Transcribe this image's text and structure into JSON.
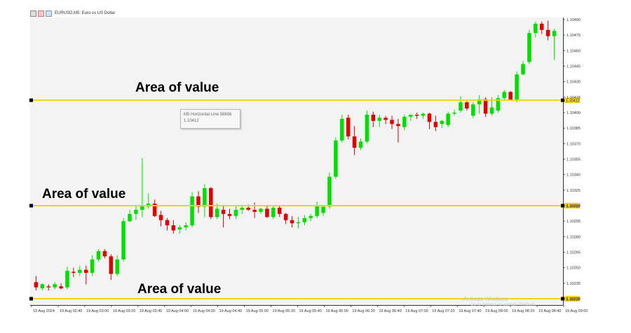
{
  "window": {
    "title": "EURUSD,M5: Euro vs US Dollar",
    "icons": [
      "chart-window-icon",
      "symbol-flag-icon",
      "timeframe-icon"
    ]
  },
  "colors": {
    "background": "#f3f3f3",
    "bull": "#00e000",
    "bear": "#e00000",
    "hline": "#f2d21b",
    "axis_text": "#333333"
  },
  "annotations": [
    {
      "text": "Area of value"
    },
    {
      "text": "Area of value"
    },
    {
      "text": "Area of value"
    }
  ],
  "tooltip": {
    "line1": "M5 Horizontal Line 58806",
    "line2": "1.10412"
  },
  "watermark": {
    "line1": "Activate Windows",
    "line2": "Go to Settings to activate Windows."
  },
  "chart_data": {
    "type": "candlestick",
    "y_axis_labels": [
      "1.10490",
      "1.10475",
      "1.10460",
      "1.10445",
      "1.10430",
      "1.10415",
      "1.10400",
      "1.10385",
      "1.10370",
      "1.10355",
      "1.10340",
      "1.10325",
      "1.10310",
      "1.10295",
      "1.10280",
      "1.10265",
      "1.10250",
      "1.10235",
      "1.10220"
    ],
    "x_axis_labels": [
      "19 Aug 2024",
      "19 Aug 02:40",
      "19 Aug 03:00",
      "19 Aug 03:20",
      "19 Aug 03:40",
      "19 Aug 04:00",
      "19 Aug 04:20",
      "19 Aug 04:40",
      "19 Aug 05:00",
      "19 Aug 05:20",
      "19 Aug 05:40",
      "19 Aug 06:00",
      "19 Aug 06:20",
      "19 Aug 06:40",
      "19 Aug 07:00",
      "19 Aug 07:20",
      "19 Aug 07:40",
      "19 Aug 08:00",
      "19 Aug 08:20",
      "19 Aug 08:40",
      "19 Aug 09:00"
    ],
    "horizontal_lines": [
      {
        "price": 1.10412,
        "label": "1.10412"
      },
      {
        "price": 1.1031,
        "label": "1.10310"
      },
      {
        "price": 1.1022,
        "label": "1.10220"
      }
    ],
    "candles": [
      [
        1.10236,
        1.10242,
        1.10228,
        1.10231
      ],
      [
        1.1023,
        1.10235,
        1.10228,
        1.10234
      ],
      [
        1.10232,
        1.10234,
        1.10228,
        1.10231
      ],
      [
        1.10231,
        1.10236,
        1.10229,
        1.10234
      ],
      [
        1.10232,
        1.10235,
        1.10229,
        1.1023
      ],
      [
        1.10231,
        1.10251,
        1.10229,
        1.10247
      ],
      [
        1.10246,
        1.1025,
        1.10241,
        1.10245
      ],
      [
        1.10245,
        1.10252,
        1.10242,
        1.10248
      ],
      [
        1.10248,
        1.10252,
        1.10234,
        1.10245
      ],
      [
        1.10245,
        1.10262,
        1.10242,
        1.10258
      ],
      [
        1.10258,
        1.10268,
        1.10256,
        1.10266
      ],
      [
        1.10266,
        1.10268,
        1.10259,
        1.10261
      ],
      [
        1.10261,
        1.10263,
        1.10238,
        1.10244
      ],
      [
        1.10244,
        1.10262,
        1.10242,
        1.10258
      ],
      [
        1.10258,
        1.10298,
        1.10256,
        1.10295
      ],
      [
        1.10295,
        1.10306,
        1.10294,
        1.10302
      ],
      [
        1.10302,
        1.1031,
        1.10296,
        1.10306
      ],
      [
        1.10306,
        1.10356,
        1.10299,
        1.1031
      ],
      [
        1.10309,
        1.10322,
        1.10307,
        1.10312
      ],
      [
        1.10312,
        1.10316,
        1.10299,
        1.103
      ],
      [
        1.10301,
        1.10305,
        1.1029,
        1.10296
      ],
      [
        1.10296,
        1.10298,
        1.10286,
        1.10291
      ],
      [
        1.10291,
        1.10296,
        1.10283,
        1.10286
      ],
      [
        1.10287,
        1.10291,
        1.10283,
        1.10289
      ],
      [
        1.10289,
        1.10294,
        1.10286,
        1.10291
      ],
      [
        1.10291,
        1.10323,
        1.10289,
        1.10319
      ],
      [
        1.10319,
        1.10324,
        1.10303,
        1.10309
      ],
      [
        1.10309,
        1.10331,
        1.10299,
        1.10327
      ],
      [
        1.10327,
        1.10328,
        1.10297,
        1.10299
      ],
      [
        1.10299,
        1.10312,
        1.10297,
        1.10307
      ],
      [
        1.10306,
        1.1031,
        1.10289,
        1.10302
      ],
      [
        1.10302,
        1.10307,
        1.10297,
        1.103
      ],
      [
        1.103,
        1.1031,
        1.10297,
        1.10306
      ],
      [
        1.10306,
        1.1031,
        1.10302,
        1.10308
      ],
      [
        1.10308,
        1.10311,
        1.10305,
        1.10306
      ],
      [
        1.10306,
        1.10313,
        1.10298,
        1.10304
      ],
      [
        1.10304,
        1.10308,
        1.10302,
        1.10307
      ],
      [
        1.10307,
        1.1031,
        1.10298,
        1.10299
      ],
      [
        1.10299,
        1.1031,
        1.10297,
        1.10308
      ],
      [
        1.10308,
        1.1031,
        1.10299,
        1.10302
      ],
      [
        1.10302,
        1.10303,
        1.10292,
        1.10296
      ],
      [
        1.10296,
        1.103,
        1.10289,
        1.10293
      ],
      [
        1.10293,
        1.10299,
        1.10288,
        1.10294
      ],
      [
        1.10294,
        1.10301,
        1.10291,
        1.10298
      ],
      [
        1.10298,
        1.10302,
        1.10295,
        1.103
      ],
      [
        1.103,
        1.10314,
        1.10298,
        1.1031
      ],
      [
        1.10303,
        1.1031,
        1.103,
        1.10309
      ],
      [
        1.10309,
        1.10342,
        1.10307,
        1.10338
      ],
      [
        1.10338,
        1.10376,
        1.10336,
        1.10373
      ],
      [
        1.10373,
        1.10398,
        1.10371,
        1.10394
      ],
      [
        1.10395,
        1.10398,
        1.10374,
        1.10377
      ],
      [
        1.10377,
        1.10387,
        1.10359,
        1.10366
      ],
      [
        1.10366,
        1.10375,
        1.10364,
        1.10372
      ],
      [
        1.10372,
        1.10402,
        1.1037,
        1.10398
      ],
      [
        1.10398,
        1.10401,
        1.10386,
        1.10392
      ],
      [
        1.10392,
        1.10398,
        1.10386,
        1.10395
      ],
      [
        1.10395,
        1.10397,
        1.10389,
        1.10393
      ],
      [
        1.10393,
        1.10397,
        1.10384,
        1.10389
      ],
      [
        1.10389,
        1.10394,
        1.10371,
        1.10387
      ],
      [
        1.10386,
        1.10398,
        1.10383,
        1.10396
      ],
      [
        1.10396,
        1.10398,
        1.10392,
        1.10398
      ],
      [
        1.10398,
        1.104,
        1.10394,
        1.10397
      ],
      [
        1.10397,
        1.104,
        1.10394,
        1.10399
      ],
      [
        1.10399,
        1.104,
        1.10384,
        1.10391
      ],
      [
        1.10391,
        1.10397,
        1.10382,
        1.10386
      ],
      [
        1.10389,
        1.10393,
        1.10385,
        1.10392
      ],
      [
        1.10388,
        1.10401,
        1.10386,
        1.10399
      ],
      [
        1.10399,
        1.10403,
        1.10397,
        1.104
      ],
      [
        1.10402,
        1.10416,
        1.104,
        1.1041
      ],
      [
        1.1041,
        1.10411,
        1.10402,
        1.10404
      ],
      [
        1.10397,
        1.1041,
        1.10395,
        1.10408
      ],
      [
        1.10408,
        1.10417,
        1.10399,
        1.10413
      ],
      [
        1.10413,
        1.10415,
        1.10396,
        1.10399
      ],
      [
        1.10399,
        1.10415,
        1.10397,
        1.10405
      ],
      [
        1.10402,
        1.10417,
        1.104,
        1.10414
      ],
      [
        1.10414,
        1.10422,
        1.10412,
        1.1042
      ],
      [
        1.1042,
        1.10421,
        1.10412,
        1.10412
      ],
      [
        1.10412,
        1.1044,
        1.1041,
        1.10437
      ],
      [
        1.10437,
        1.1045,
        1.10436,
        1.10447
      ],
      [
        1.10449,
        1.1048,
        1.10447,
        1.10477
      ],
      [
        1.10477,
        1.10488,
        1.10473,
        1.10486
      ],
      [
        1.10486,
        1.10488,
        1.10476,
        1.1048
      ],
      [
        1.1048,
        1.10489,
        1.1047,
        1.10474
      ],
      [
        1.10474,
        1.10481,
        1.10451,
        1.10479
      ]
    ]
  }
}
